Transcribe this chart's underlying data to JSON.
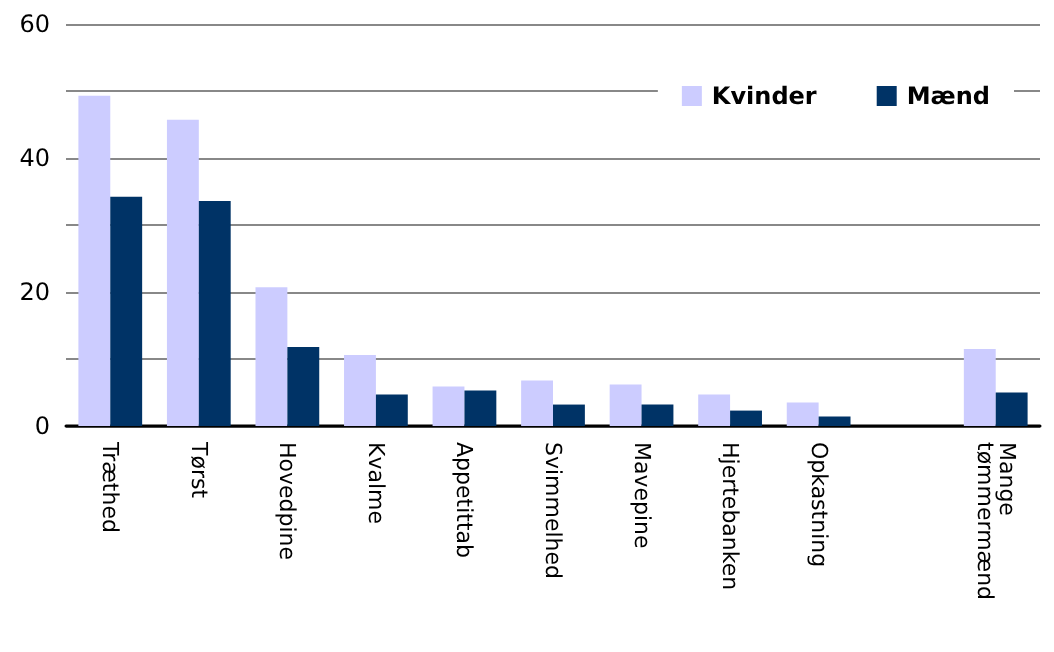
{
  "chart_data": {
    "type": "bar",
    "categories": [
      "Træthed",
      "Tørst",
      "Hovedpine",
      "Kvalme",
      "Appetittab",
      "Svimmelhed",
      "Mavepine",
      "Hjertebanken",
      "Opkastning",
      null,
      "Mange tømmermænd"
    ],
    "series": [
      {
        "name": "Kvinder",
        "color": "#ccccff",
        "values": [
          49.3,
          45.7,
          20.7,
          10.6,
          5.9,
          6.8,
          6.2,
          4.7,
          3.5,
          null,
          11.5
        ]
      },
      {
        "name": "Mænd",
        "color": "#003366",
        "values": [
          34.2,
          33.6,
          11.8,
          4.7,
          5.3,
          3.2,
          3.2,
          2.3,
          1.4,
          null,
          5.0
        ]
      }
    ],
    "ylim": [
      0,
      60
    ],
    "yticks": [
      0,
      {
        "value": 10,
        "label": null
      },
      20,
      {
        "value": 30,
        "label": null
      },
      40,
      {
        "value": 50,
        "label": null
      },
      60
    ],
    "grid": "y",
    "legend": "top right"
  }
}
